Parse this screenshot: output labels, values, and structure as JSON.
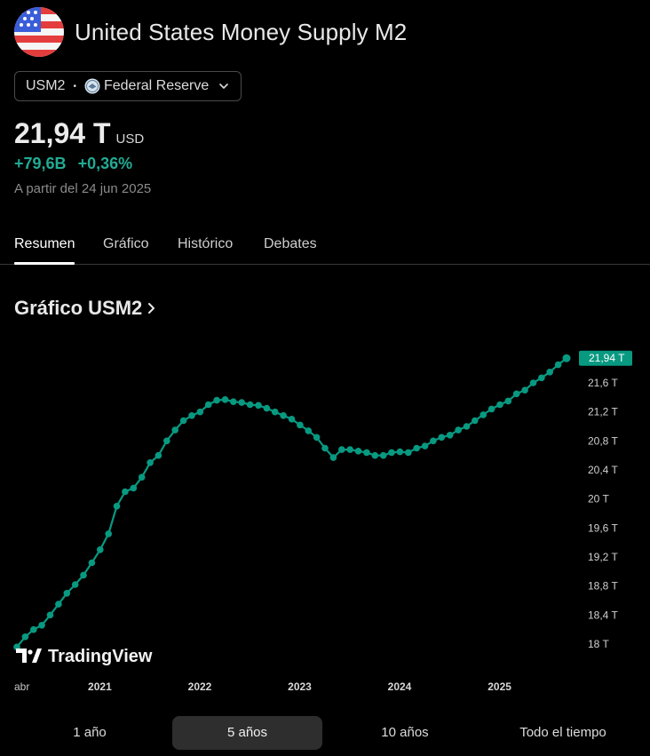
{
  "header": {
    "title": "United States Money Supply M2",
    "flag_icon": "us-flag-icon"
  },
  "selector": {
    "symbol": "USM2",
    "separator": "•",
    "source": "Federal Reserve"
  },
  "quote": {
    "value": "21,94 T",
    "unit": "USD",
    "change_abs": "+79,6B",
    "change_pct": "+0,36%",
    "as_of": "A partir del 24 jun 2025",
    "change_color": "#22ab94"
  },
  "tabs": [
    {
      "label": "Resumen",
      "active": true
    },
    {
      "label": "Gráfico",
      "active": false
    },
    {
      "label": "Histórico",
      "active": false
    },
    {
      "label": "Debates",
      "active": false
    }
  ],
  "section": {
    "title": "Gráfico USM2"
  },
  "chart_data": {
    "type": "line",
    "series_color": "#089981",
    "x_label_start": "abr",
    "year_labels": [
      "2021",
      "2022",
      "2023",
      "2024",
      "2025"
    ],
    "y_tick_labels": [
      "18 T",
      "18,4 T",
      "18,8 T",
      "19,2 T",
      "19,6 T",
      "20 T",
      "20,4 T",
      "20,8 T",
      "21,2 T",
      "21,6 T"
    ],
    "y_ticks": [
      18,
      18.4,
      18.8,
      19.2,
      19.6,
      20,
      20.4,
      20.8,
      21.2,
      21.6
    ],
    "ylim": [
      17.95,
      22.05
    ],
    "last_value_label": "21,94 T",
    "watermark": "TradingView",
    "x_start": "2020-04",
    "values": [
      17.96,
      18.1,
      18.2,
      18.26,
      18.4,
      18.55,
      18.7,
      18.82,
      18.95,
      19.12,
      19.3,
      19.52,
      19.9,
      20.1,
      20.15,
      20.3,
      20.5,
      20.6,
      20.8,
      20.95,
      21.08,
      21.15,
      21.2,
      21.3,
      21.36,
      21.37,
      21.34,
      21.33,
      21.3,
      21.29,
      21.25,
      21.2,
      21.15,
      21.1,
      21.02,
      20.94,
      20.85,
      20.7,
      20.57,
      20.68,
      20.68,
      20.66,
      20.64,
      20.6,
      20.6,
      20.64,
      20.65,
      20.64,
      20.7,
      20.73,
      20.8,
      20.85,
      20.88,
      20.95,
      21.0,
      21.08,
      21.16,
      21.24,
      21.3,
      21.35,
      21.45,
      21.5,
      21.6,
      21.67,
      21.75,
      21.85,
      21.94
    ]
  },
  "periods": [
    {
      "label": "1 año",
      "active": false
    },
    {
      "label": "5 años",
      "active": true
    },
    {
      "label": "10 años",
      "active": false
    },
    {
      "label": "Todo el tiempo",
      "active": false
    }
  ]
}
